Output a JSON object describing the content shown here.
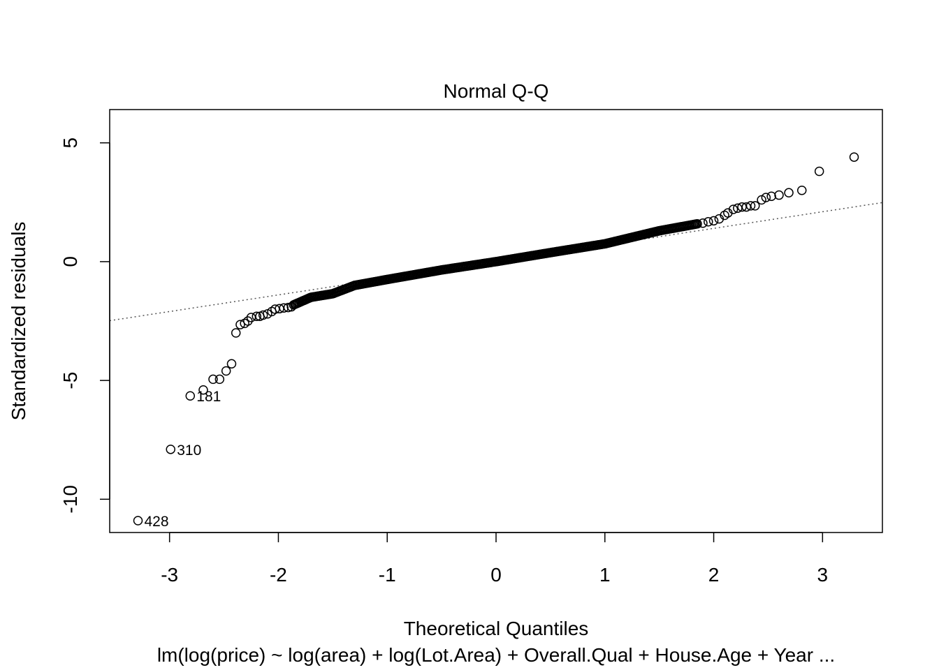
{
  "chart_data": {
    "type": "scatter",
    "title": "Normal Q-Q",
    "xlabel": "Theoretical Quantiles",
    "ylabel": "Standardized residuals",
    "subtitle": "lm(log(price) ~ log(area) + log(Lot.Area) + Overall.Qual + House.Age + Year ...",
    "xlim": [
      -3.55,
      3.55
    ],
    "ylim": [
      -11.4,
      6.4
    ],
    "xticks": [
      -3,
      -2,
      -1,
      0,
      1,
      2,
      3
    ],
    "yticks": [
      -10,
      -5,
      0,
      5
    ],
    "grid": false,
    "reference_line": {
      "slope": 0.7,
      "intercept": 0,
      "style": "dotted",
      "color": "#555555"
    },
    "point_labels": [
      {
        "label": "428",
        "x": -3.29,
        "y": -10.9
      },
      {
        "label": "310",
        "x": -2.99,
        "y": -7.9
      },
      {
        "label": "181",
        "x": -2.81,
        "y": -5.65
      }
    ],
    "outlier_points": [
      {
        "x": -2.69,
        "y": -5.4
      },
      {
        "x": -2.6,
        "y": -4.95
      },
      {
        "x": -2.54,
        "y": -4.95
      },
      {
        "x": -2.48,
        "y": -4.6
      },
      {
        "x": -2.43,
        "y": -4.3
      },
      {
        "x": -2.39,
        "y": -3.0
      },
      {
        "x": -2.35,
        "y": -2.65
      },
      {
        "x": -2.31,
        "y": -2.6
      },
      {
        "x": -2.28,
        "y": -2.5
      },
      {
        "x": -2.25,
        "y": -2.35
      },
      {
        "x": -2.2,
        "y": -2.3
      },
      {
        "x": -2.17,
        "y": -2.3
      },
      {
        "x": -2.14,
        "y": -2.25
      },
      {
        "x": -2.1,
        "y": -2.2
      },
      {
        "x": -2.06,
        "y": -2.1
      },
      {
        "x": -2.03,
        "y": -2.0
      },
      {
        "x": -1.99,
        "y": -1.98
      },
      {
        "x": -1.95,
        "y": -1.95
      },
      {
        "x": -1.91,
        "y": -1.93
      },
      {
        "x": -1.88,
        "y": -1.9
      },
      {
        "x": 1.9,
        "y": 1.62
      },
      {
        "x": 1.95,
        "y": 1.68
      },
      {
        "x": 2.0,
        "y": 1.72
      },
      {
        "x": 2.05,
        "y": 1.8
      },
      {
        "x": 2.1,
        "y": 1.95
      },
      {
        "x": 2.13,
        "y": 2.05
      },
      {
        "x": 2.18,
        "y": 2.2
      },
      {
        "x": 2.22,
        "y": 2.25
      },
      {
        "x": 2.26,
        "y": 2.3
      },
      {
        "x": 2.3,
        "y": 2.3
      },
      {
        "x": 2.34,
        "y": 2.35
      },
      {
        "x": 2.38,
        "y": 2.35
      },
      {
        "x": 2.44,
        "y": 2.6
      },
      {
        "x": 2.48,
        "y": 2.7
      },
      {
        "x": 2.53,
        "y": 2.75
      },
      {
        "x": 2.6,
        "y": 2.8
      },
      {
        "x": 2.69,
        "y": 2.9
      },
      {
        "x": 2.81,
        "y": 3.0
      },
      {
        "x": 2.97,
        "y": 3.8
      },
      {
        "x": 3.29,
        "y": 4.4
      }
    ],
    "bulk_curve": [
      {
        "x": -1.86,
        "y": -1.82
      },
      {
        "x": -1.7,
        "y": -1.5
      },
      {
        "x": -1.5,
        "y": -1.35
      },
      {
        "x": -1.3,
        "y": -1.0
      },
      {
        "x": -1.0,
        "y": -0.75
      },
      {
        "x": -0.5,
        "y": -0.35
      },
      {
        "x": 0.0,
        "y": 0.0
      },
      {
        "x": 0.5,
        "y": 0.38
      },
      {
        "x": 1.0,
        "y": 0.75
      },
      {
        "x": 1.5,
        "y": 1.3
      },
      {
        "x": 1.86,
        "y": 1.6
      }
    ],
    "bulk_step": 0.011
  }
}
